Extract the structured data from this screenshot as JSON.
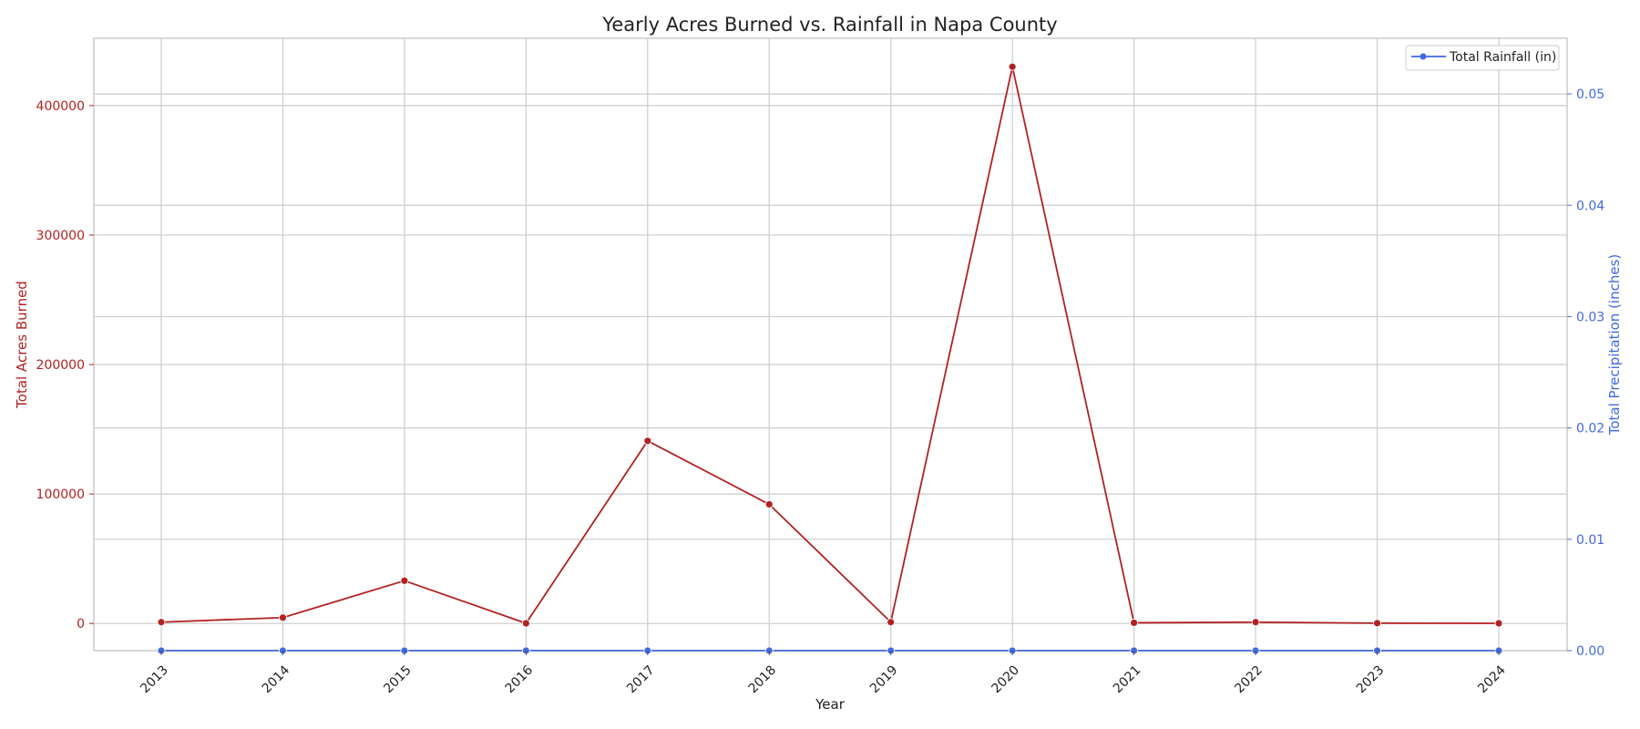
{
  "chart_data": {
    "type": "line",
    "title": "Yearly Acres Burned vs. Rainfall in Napa County",
    "xlabel": "Year",
    "ylabel_left": "Total Acres Burned",
    "ylabel_right": "Total Precipitation (inches)",
    "categories": [
      "2013",
      "2014",
      "2015",
      "2016",
      "2017",
      "2018",
      "2019",
      "2020",
      "2021",
      "2022",
      "2023",
      "2024"
    ],
    "ylim_left": [
      -21000,
      452000
    ],
    "yticks_left": [
      "0",
      "100000",
      "200000",
      "300000",
      "400000"
    ],
    "ylim_right": [
      0.0,
      0.055
    ],
    "yticks_right": [
      "0.00",
      "0.01",
      "0.02",
      "0.03",
      "0.04",
      "0.05"
    ],
    "series": [
      {
        "name": "",
        "axis": "left",
        "color": "#b22222",
        "values": [
          1000,
          4500,
          33000,
          100,
          141000,
          92000,
          1000,
          430000,
          500,
          1000,
          200,
          100
        ]
      },
      {
        "name": "Total Rainfall (in)",
        "axis": "right",
        "color": "#4169e1",
        "values": [
          0,
          0,
          0,
          0,
          0,
          0,
          0,
          0,
          0,
          0,
          0,
          0
        ]
      }
    ],
    "legend_position": "top-right",
    "grid": true
  }
}
